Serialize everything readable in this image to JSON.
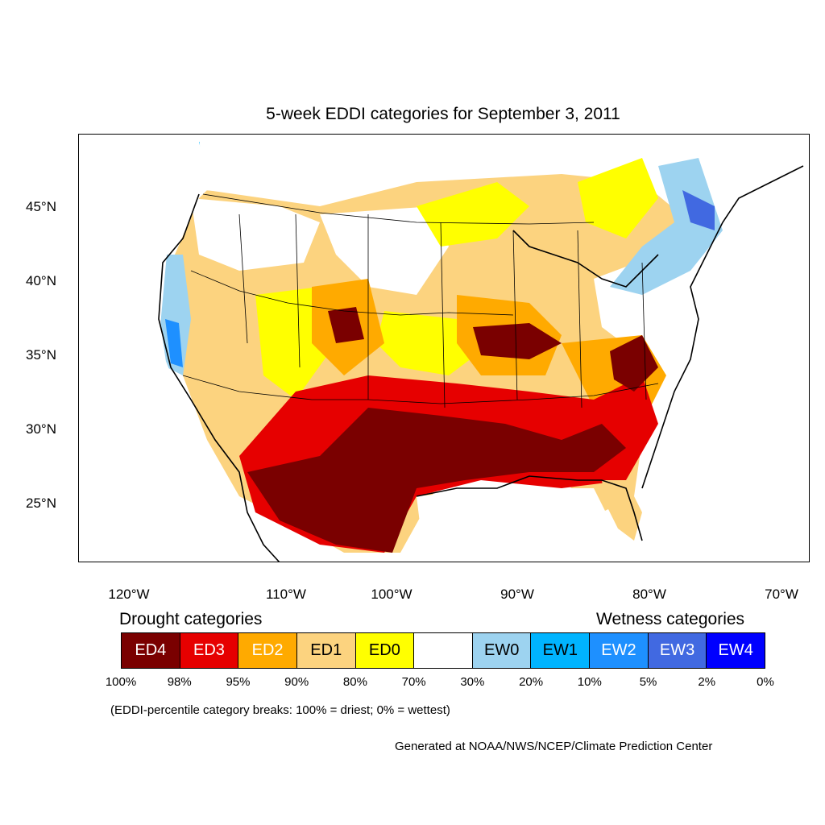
{
  "map": {
    "title": "5-week EDDI categories for September 3, 2011",
    "lat_labels": [
      "45°N",
      "40°N",
      "35°N",
      "30°N",
      "25°N"
    ],
    "lon_labels": [
      "120°W",
      "110°W",
      "100°W",
      "90°W",
      "80°W",
      "70°W"
    ],
    "colors": {
      "ED4": "#7a0000",
      "ED3": "#e60000",
      "ED2": "#ffaa00",
      "ED1": "#fcd37f",
      "ED0": "#ffff00",
      "neutral": "#ffffff",
      "EW0": "#9dd3f0",
      "EW1": "#00b4ff",
      "EW2": "#1e90ff",
      "EW3": "#4169e1",
      "EW4": "#0000ff"
    }
  },
  "legend": {
    "drought_heading": "Drought categories",
    "wetness_heading": "Wetness categories",
    "categories": [
      {
        "label": "ED4",
        "color": "#7a0000",
        "text_color": "#ffffff"
      },
      {
        "label": "ED3",
        "color": "#e60000",
        "text_color": "#ffffff"
      },
      {
        "label": "ED2",
        "color": "#ffaa00",
        "text_color": "#ffffff"
      },
      {
        "label": "ED1",
        "color": "#fcd37f",
        "text_color": "#000000"
      },
      {
        "label": "ED0",
        "color": "#ffff00",
        "text_color": "#000000"
      },
      {
        "label": "",
        "color": "#ffffff",
        "text_color": "#000000"
      },
      {
        "label": "EW0",
        "color": "#9dd3f0",
        "text_color": "#000000"
      },
      {
        "label": "EW1",
        "color": "#00b4ff",
        "text_color": "#000000"
      },
      {
        "label": "EW2",
        "color": "#1e90ff",
        "text_color": "#ffffff"
      },
      {
        "label": "EW3",
        "color": "#4169e1",
        "text_color": "#ffffff"
      },
      {
        "label": "EW4",
        "color": "#0000ff",
        "text_color": "#ffffff"
      }
    ],
    "breaks": [
      "100%",
      "98%",
      "95%",
      "90%",
      "80%",
      "70%",
      "30%",
      "20%",
      "10%",
      "5%",
      "2%",
      "0%"
    ],
    "note": "(EDDI-percentile category breaks: 100% = driest; 0% = wettest)",
    "credit": "Generated at NOAA/NWS/NCEP/Climate Prediction Center"
  }
}
